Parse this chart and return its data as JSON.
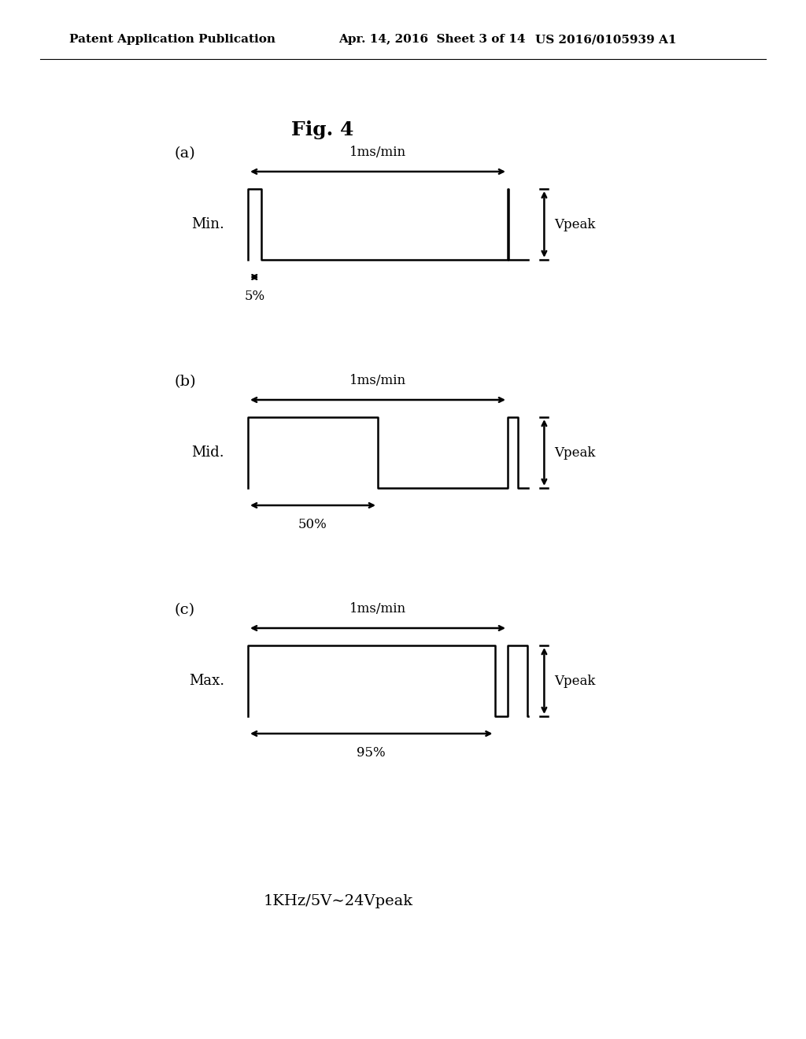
{
  "header_left": "Patent Application Publication",
  "header_mid": "Apr. 14, 2016  Sheet 3 of 14",
  "header_right": "US 2016/0105939 A1",
  "fig_title": "Fig. 4",
  "footer_text": "1KHz/5V∼24Vpeak",
  "background_color": "#ffffff",
  "line_color": "#000000",
  "diagrams": [
    {
      "label": "(a)",
      "mode_label": "Min.",
      "percent_label": "5%",
      "period_label": "1ms/min",
      "vpeak_label": "Vpeak",
      "duty_cycle": 0.05,
      "waveform": "min"
    },
    {
      "label": "(b)",
      "mode_label": "Mid.",
      "percent_label": "50%",
      "period_label": "1ms/min",
      "vpeak_label": "Vpeak",
      "duty_cycle": 0.5,
      "waveform": "mid"
    },
    {
      "label": "(c)",
      "mode_label": "Max.",
      "percent_label": "95%",
      "period_label": "1ms/min",
      "vpeak_label": "Vpeak",
      "duty_cycle": 0.95,
      "waveform": "max"
    }
  ]
}
